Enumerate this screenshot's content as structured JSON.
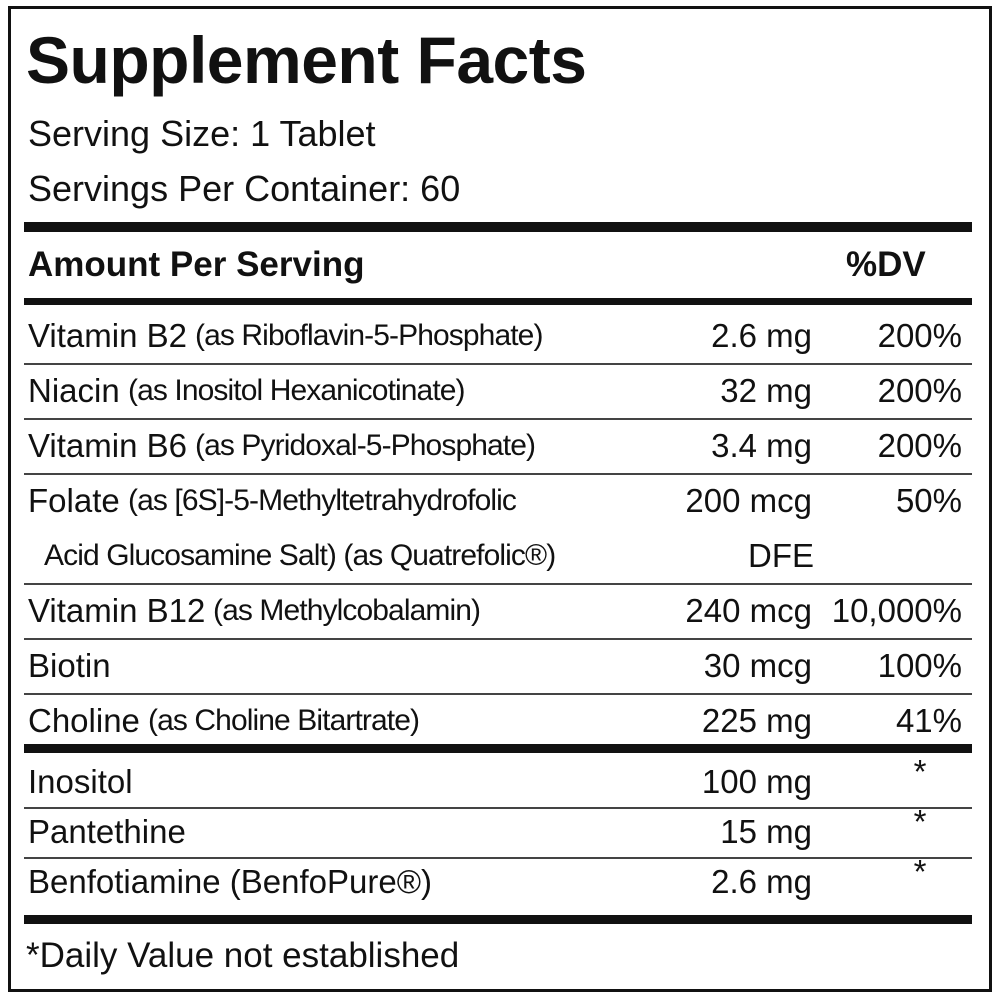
{
  "title": "Supplement Facts",
  "serving_size": "Serving Size: 1 Tablet",
  "servings_per_container": "Servings Per Container: 60",
  "header": {
    "amount": "Amount Per Serving",
    "dv": "%DV"
  },
  "sections": [
    {
      "rows": [
        {
          "name": "Vitamin B2",
          "detail": "(as Riboflavin-5-Phosphate)",
          "amount": "2.6 mg",
          "dv": "200%"
        },
        {
          "name": "Niacin",
          "detail": "(as Inositol Hexanicotinate)",
          "amount": "32 mg",
          "dv": "200%"
        },
        {
          "name": "Vitamin B6",
          "detail": "(as Pyridoxal-5-Phosphate)",
          "amount": "3.4 mg",
          "dv": "200%"
        },
        {
          "name": "Folate",
          "detail": "(as [6S]-5-Methyltetrahydrofolic",
          "detail_2": "Acid Glucosamine Salt) (as Quatrefolic®)",
          "amount": "200 mcg",
          "amount_2": "DFE",
          "dv": "50%"
        },
        {
          "name": "Vitamin B12",
          "detail": "(as Methylcobalamin)",
          "amount": "240 mcg",
          "dv": "10,000%"
        },
        {
          "name": "Biotin",
          "amount": "30 mcg",
          "dv": "100%"
        },
        {
          "name": "Choline",
          "detail": "(as Choline Bitartrate)",
          "amount": "225 mg",
          "dv": "41%"
        }
      ]
    },
    {
      "rows": [
        {
          "name": "Inositol",
          "amount": "100 mg",
          "dv": "*"
        },
        {
          "name": "Pantethine",
          "amount": "15 mg",
          "dv": "*"
        },
        {
          "name": "Benfotiamine (BenfoPure®)",
          "amount": "2.6 mg",
          "dv": "*"
        }
      ]
    }
  ],
  "footnote": "*Daily Value not established"
}
